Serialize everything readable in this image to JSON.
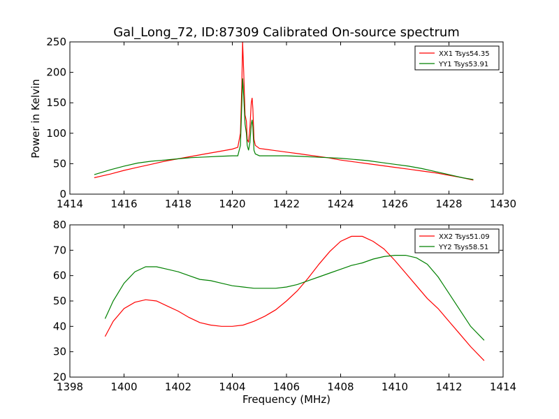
{
  "title": "Gal_Long_72, ID:87309 Calibrated On-source spectrum",
  "colors": {
    "XX": "#ff0000",
    "YY": "#008000"
  },
  "chart_data": [
    {
      "type": "line",
      "ylabel": "Power in Kelvin",
      "xlabel": "",
      "xlim": [
        1414,
        1430
      ],
      "ylim": [
        0,
        250
      ],
      "xticks": [
        "1414",
        "1416",
        "1418",
        "1420",
        "1422",
        "1424",
        "1426",
        "1428",
        "1430"
      ],
      "yticks": [
        "0",
        "50",
        "100",
        "150",
        "200",
        "250"
      ],
      "legend": "top-right",
      "grid": false,
      "series": [
        {
          "name": "XX1 Tsys54.35",
          "color": "#ff0000",
          "x": [
            1414.9,
            1415.5,
            1416.0,
            1416.5,
            1417.0,
            1417.5,
            1418.0,
            1418.5,
            1419.0,
            1419.5,
            1420.0,
            1420.2,
            1420.3,
            1420.35,
            1420.38,
            1420.42,
            1420.47,
            1420.52,
            1420.55,
            1420.6,
            1420.65,
            1420.7,
            1420.73,
            1420.76,
            1420.8,
            1420.85,
            1421.0,
            1421.5,
            1422.0,
            1422.5,
            1423.0,
            1423.5,
            1424.0,
            1424.5,
            1425.0,
            1425.5,
            1426.0,
            1426.5,
            1427.0,
            1427.5,
            1428.0,
            1428.5,
            1428.9
          ],
          "y": [
            27,
            33,
            39,
            44,
            49,
            54,
            58,
            62,
            66,
            70,
            74,
            77,
            100,
            180,
            250,
            200,
            130,
            120,
            90,
            85,
            110,
            150,
            158,
            140,
            90,
            80,
            75,
            72,
            69,
            66,
            63,
            60,
            56,
            53,
            50,
            47,
            44,
            41,
            38,
            35,
            31,
            27,
            23
          ]
        },
        {
          "name": "YY1 Tsys53.91",
          "color": "#008000",
          "x": [
            1414.9,
            1415.5,
            1416.0,
            1416.5,
            1417.0,
            1417.5,
            1418.0,
            1418.5,
            1419.0,
            1419.5,
            1420.0,
            1420.2,
            1420.3,
            1420.35,
            1420.38,
            1420.42,
            1420.47,
            1420.52,
            1420.55,
            1420.6,
            1420.65,
            1420.7,
            1420.73,
            1420.76,
            1420.8,
            1420.85,
            1421.0,
            1421.5,
            1422.0,
            1422.5,
            1423.0,
            1423.5,
            1424.0,
            1424.5,
            1425.0,
            1425.5,
            1426.0,
            1426.5,
            1427.0,
            1427.5,
            1428.0,
            1428.5,
            1428.9
          ],
          "y": [
            32,
            40,
            46,
            51,
            54,
            56,
            58,
            60,
            61,
            62,
            63,
            63,
            80,
            150,
            190,
            160,
            115,
            100,
            80,
            72,
            85,
            115,
            122,
            110,
            72,
            66,
            63,
            63,
            63,
            62,
            61,
            60,
            59,
            57,
            55,
            52,
            49,
            46,
            42,
            37,
            32,
            27,
            24
          ]
        }
      ]
    },
    {
      "type": "line",
      "ylabel": "",
      "xlabel": "Frequency (MHz)",
      "xlim": [
        1398,
        1414
      ],
      "ylim": [
        20,
        80
      ],
      "xticks": [
        "1398",
        "1400",
        "1402",
        "1404",
        "1406",
        "1408",
        "1410",
        "1412",
        "1414"
      ],
      "yticks": [
        "20",
        "30",
        "40",
        "50",
        "60",
        "70",
        "80"
      ],
      "legend": "top-right",
      "grid": false,
      "series": [
        {
          "name": "XX2 Tsys51.09",
          "color": "#ff0000",
          "x": [
            1399.3,
            1399.6,
            1400.0,
            1400.4,
            1400.8,
            1401.2,
            1401.6,
            1402.0,
            1402.4,
            1402.8,
            1403.2,
            1403.6,
            1404.0,
            1404.4,
            1404.8,
            1405.2,
            1405.6,
            1406.0,
            1406.4,
            1406.8,
            1407.2,
            1407.6,
            1408.0,
            1408.4,
            1408.8,
            1409.2,
            1409.6,
            1410.0,
            1410.4,
            1410.8,
            1411.2,
            1411.6,
            1412.0,
            1412.4,
            1412.8,
            1413.3
          ],
          "y": [
            36,
            42,
            47,
            49.5,
            50.5,
            50,
            48,
            46,
            43.5,
            41.5,
            40.5,
            40,
            40,
            40.5,
            42,
            44,
            46.5,
            50,
            54,
            59,
            64.5,
            69.5,
            73.5,
            75.5,
            75.5,
            73.5,
            70.5,
            66,
            61,
            56,
            51,
            47,
            42,
            37,
            32,
            26.5
          ]
        },
        {
          "name": "YY2 Tsys58.51",
          "color": "#008000",
          "x": [
            1399.3,
            1399.6,
            1400.0,
            1400.4,
            1400.8,
            1401.2,
            1401.6,
            1402.0,
            1402.4,
            1402.8,
            1403.2,
            1403.6,
            1404.0,
            1404.4,
            1404.8,
            1405.2,
            1405.6,
            1406.0,
            1406.4,
            1406.8,
            1407.2,
            1407.6,
            1408.0,
            1408.4,
            1408.8,
            1409.2,
            1409.6,
            1410.0,
            1410.4,
            1410.8,
            1411.2,
            1411.6,
            1412.0,
            1412.4,
            1412.8,
            1413.3
          ],
          "y": [
            43,
            50,
            57,
            61.5,
            63.5,
            63.5,
            62.5,
            61.5,
            60,
            58.5,
            58,
            57,
            56,
            55.5,
            55,
            55,
            55,
            55.5,
            56.5,
            58,
            59.5,
            61,
            62.5,
            64,
            65,
            66.5,
            67.5,
            68,
            68,
            67,
            64.5,
            59.5,
            53,
            46.5,
            40,
            34.5
          ]
        }
      ]
    }
  ]
}
